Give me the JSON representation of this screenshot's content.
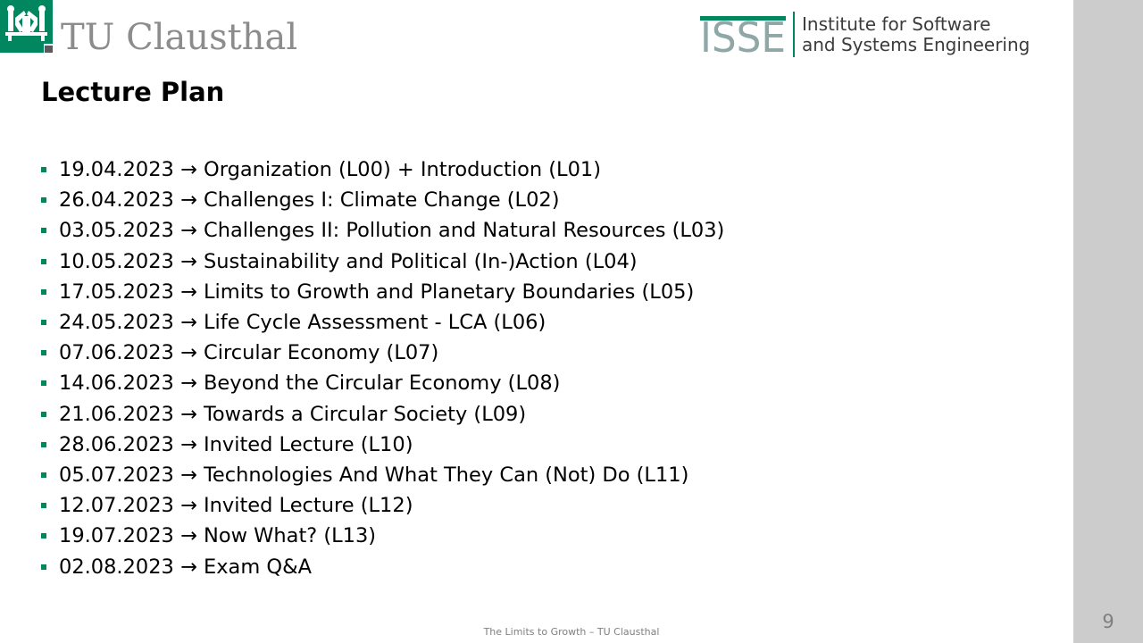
{
  "header": {
    "university_name": "TU Clausthal",
    "institute_logo_text": "ISSE",
    "institute_line1": "Institute for Software",
    "institute_line2": "and Systems Engineering",
    "brand_color": "#00875f"
  },
  "slide": {
    "title": "Lecture Plan",
    "items": [
      {
        "date": "19.04.2023",
        "arrow": "→",
        "topic": "Organization (L00) + Introduction (L01)"
      },
      {
        "date": "26.04.2023",
        "arrow": "→",
        "topic": "Challenges I: Climate Change (L02)"
      },
      {
        "date": "03.05.2023",
        "arrow": "→",
        "topic": "Challenges II: Pollution and Natural Resources (L03)"
      },
      {
        "date": "10.05.2023",
        "arrow": "→",
        "topic": "Sustainability and Political (In-)Action (L04)"
      },
      {
        "date": "17.05.2023",
        "arrow": "→",
        "topic": "Limits to Growth and Planetary Boundaries (L05)"
      },
      {
        "date": "24.05.2023",
        "arrow": "→",
        "topic": "Life Cycle Assessment - LCA (L06)"
      },
      {
        "date": "07.06.2023",
        "arrow": "→",
        "topic": "Circular Economy (L07)"
      },
      {
        "date": "14.06.2023",
        "arrow": "→",
        "topic": "Beyond the Circular Economy (L08)"
      },
      {
        "date": "21.06.2023",
        "arrow": "→",
        "topic": "Towards a Circular Society (L09)"
      },
      {
        "date": "28.06.2023",
        "arrow": "→",
        "topic": "Invited Lecture (L10)"
      },
      {
        "date": "05.07.2023",
        "arrow": "→",
        "topic": "Technologies And What They Can (Not) Do (L11)"
      },
      {
        "date": "12.07.2023",
        "arrow": "→",
        "topic": "Invited Lecture (L12)"
      },
      {
        "date": "19.07.2023",
        "arrow": "→",
        "topic": "Now What? (L13)"
      },
      {
        "date": "02.08.2023",
        "arrow": "→",
        "topic": "Exam Q&A"
      }
    ],
    "bullet_icon": "square-bullet-icon"
  },
  "footer": {
    "text": "The Limits to Growth – TU Clausthal",
    "page_number": "9"
  }
}
